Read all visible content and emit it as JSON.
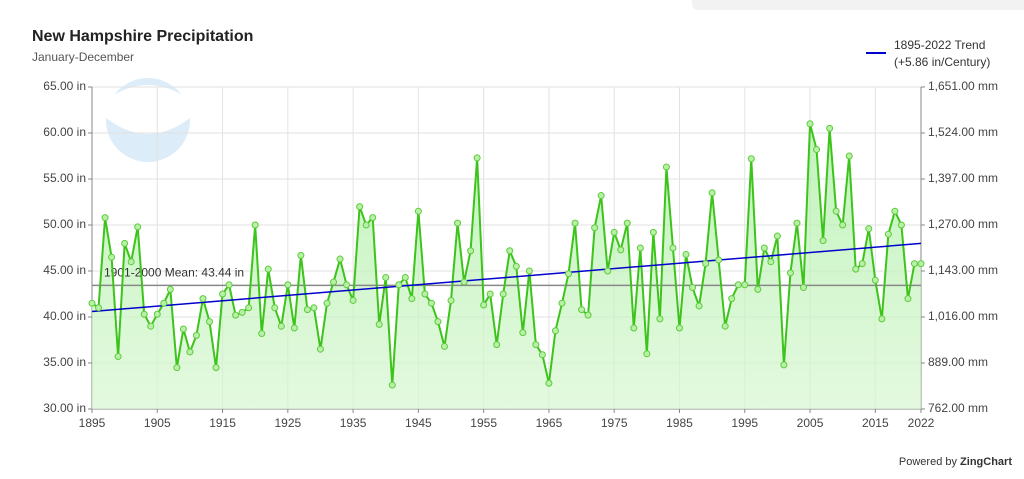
{
  "chart_data": {
    "type": "line",
    "title": "New Hampshire Precipitation",
    "subtitle": "January-December",
    "x": [
      1895,
      1896,
      1897,
      1898,
      1899,
      1900,
      1901,
      1902,
      1903,
      1904,
      1905,
      1906,
      1907,
      1908,
      1909,
      1910,
      1911,
      1912,
      1913,
      1914,
      1915,
      1916,
      1917,
      1918,
      1919,
      1920,
      1921,
      1922,
      1923,
      1924,
      1925,
      1926,
      1927,
      1928,
      1929,
      1930,
      1931,
      1932,
      1933,
      1934,
      1935,
      1936,
      1937,
      1938,
      1939,
      1940,
      1941,
      1942,
      1943,
      1944,
      1945,
      1946,
      1947,
      1948,
      1949,
      1950,
      1951,
      1952,
      1953,
      1954,
      1955,
      1956,
      1957,
      1958,
      1959,
      1960,
      1961,
      1962,
      1963,
      1964,
      1965,
      1966,
      1967,
      1968,
      1969,
      1970,
      1971,
      1972,
      1973,
      1974,
      1975,
      1976,
      1977,
      1978,
      1979,
      1980,
      1981,
      1982,
      1983,
      1984,
      1985,
      1986,
      1987,
      1988,
      1989,
      1990,
      1991,
      1992,
      1993,
      1994,
      1995,
      1996,
      1997,
      1998,
      1999,
      2000,
      2001,
      2002,
      2003,
      2004,
      2005,
      2006,
      2007,
      2008,
      2009,
      2010,
      2011,
      2012,
      2013,
      2014,
      2015,
      2016,
      2017,
      2018,
      2019,
      2020,
      2021,
      2022
    ],
    "series": [
      {
        "name": "Precipitation",
        "color": "#3cc41a",
        "values": [
          41.5,
          41.0,
          50.8,
          46.5,
          35.7,
          48.0,
          46.0,
          49.8,
          40.3,
          39.0,
          40.3,
          41.5,
          43.0,
          34.5,
          38.7,
          36.2,
          38.0,
          42.0,
          39.5,
          34.5,
          42.5,
          43.5,
          40.2,
          40.5,
          41.0,
          50.0,
          38.2,
          45.2,
          41.0,
          39.0,
          43.5,
          38.8,
          46.7,
          40.8,
          41.0,
          36.5,
          41.5,
          43.8,
          46.3,
          43.5,
          41.8,
          52.0,
          50.0,
          50.8,
          39.2,
          44.3,
          32.6,
          43.5,
          44.3,
          42.0,
          51.5,
          42.5,
          41.5,
          39.5,
          36.8,
          41.8,
          50.2,
          43.8,
          47.2,
          57.3,
          41.3,
          42.5,
          37.0,
          42.5,
          47.2,
          45.5,
          38.3,
          45.0,
          37.0,
          35.9,
          32.8,
          38.5,
          41.5,
          44.7,
          50.2,
          40.8,
          40.2,
          49.7,
          53.2,
          45.0,
          49.2,
          47.3,
          50.2,
          38.8,
          47.5,
          36.0,
          49.2,
          39.8,
          56.3,
          47.5,
          38.8,
          46.8,
          43.2,
          41.2,
          45.8,
          53.5,
          46.2,
          39.0,
          42.0,
          43.5,
          43.5,
          57.2,
          43.0,
          47.5,
          46.0,
          48.8,
          34.8,
          44.8,
          50.2,
          43.2,
          61.0,
          58.2,
          48.3,
          60.5,
          51.5,
          50.0,
          57.5,
          45.2,
          45.8,
          49.6,
          44.0,
          39.8,
          49.0,
          51.5,
          50.0,
          42.0,
          45.8,
          45.8
        ]
      },
      {
        "name": "1895-2022 Trend",
        "note": "(+5.86 in/Century)",
        "color": "#0000cc",
        "x": [
          1895,
          2022
        ],
        "values": [
          40.6,
          48.0
        ]
      }
    ],
    "mean_line": {
      "label": "1901-2000 Mean: 43.44 in",
      "value": 43.44,
      "color": "#888888"
    },
    "xlim": [
      1895,
      2022
    ],
    "xticks": [
      1895,
      1905,
      1915,
      1925,
      1935,
      1945,
      1955,
      1965,
      1975,
      1985,
      1995,
      2005,
      2015,
      2022
    ],
    "ylim": [
      30,
      65
    ],
    "yticks": [
      {
        "value": 30,
        "label": "30.00 in"
      },
      {
        "value": 35,
        "label": "35.00 in"
      },
      {
        "value": 40,
        "label": "40.00 in"
      },
      {
        "value": 45,
        "label": "45.00 in"
      },
      {
        "value": 50,
        "label": "50.00 in"
      },
      {
        "value": 55,
        "label": "55.00 in"
      },
      {
        "value": 60,
        "label": "60.00 in"
      },
      {
        "value": 65,
        "label": "65.00 in"
      }
    ],
    "y2lim": [
      762,
      1651
    ],
    "y2ticks": [
      {
        "value": 762,
        "label": "762.00 mm"
      },
      {
        "value": 889,
        "label": "889.00 mm"
      },
      {
        "value": 1016,
        "label": "1,016.00 mm"
      },
      {
        "value": 1143,
        "label": "1,143.00 mm"
      },
      {
        "value": 1270,
        "label": "1,270.00 mm"
      },
      {
        "value": 1397,
        "label": "1,397.00 mm"
      },
      {
        "value": 1524,
        "label": "1,524.00 mm"
      },
      {
        "value": 1651,
        "label": "1,651.00 mm"
      }
    ],
    "grid": true,
    "credit": "Powered by",
    "credit_brand": "ZingChart"
  }
}
